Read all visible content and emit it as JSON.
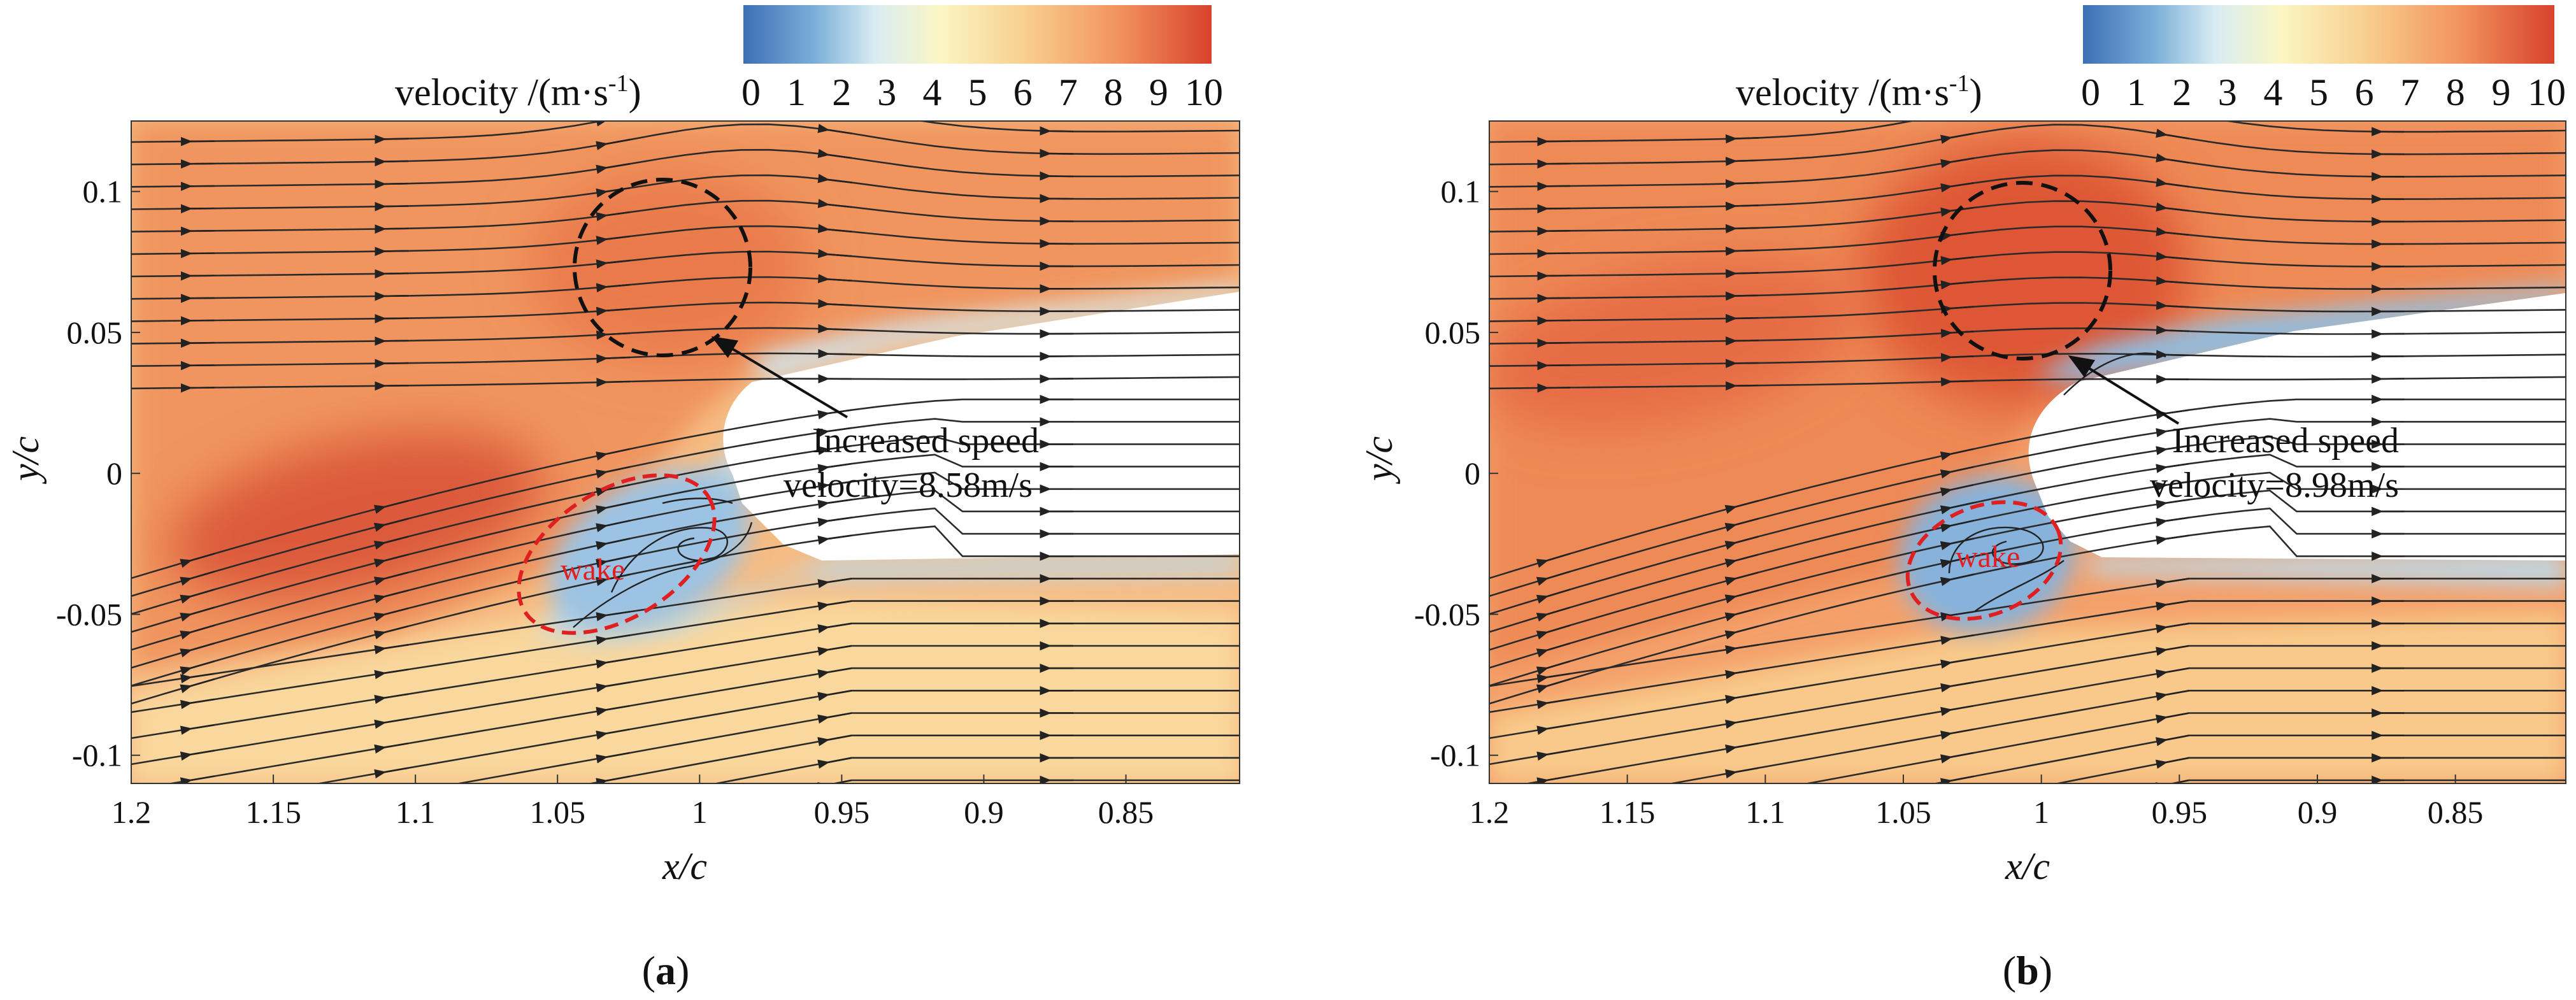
{
  "chart_data": [
    {
      "type": "heatmap",
      "panel_label": "a",
      "xlabel": "x/c",
      "ylabel": "y/c",
      "xlim": [
        1.2,
        0.81
      ],
      "ylim": [
        -0.11,
        0.125
      ],
      "x_ticks": [
        "1.2",
        "1.15",
        "1.1",
        "1.05",
        "1",
        "0.95",
        "0.9",
        "0.85"
      ],
      "x_tick_values": [
        1.2,
        1.15,
        1.1,
        1.05,
        1.0,
        0.95,
        0.9,
        0.85
      ],
      "y_ticks": [
        "0.1",
        "0.05",
        "0",
        "-0.05",
        "-0.1"
      ],
      "y_tick_values": [
        0.1,
        0.05,
        0,
        -0.05,
        -0.1
      ],
      "colorbar": {
        "label": "velocity /(m·s",
        "label_sup": "-1",
        "label_close": ")",
        "min": 0,
        "max": 10,
        "ticks": [
          "0",
          "1",
          "2",
          "3",
          "4",
          "5",
          "6",
          "7",
          "8",
          "9",
          "10"
        ],
        "colors": [
          "#3d6fb6",
          "#7aaed8",
          "#d8ecf3",
          "#fbf6c4",
          "#f8cf8f",
          "#f2935f",
          "#d8422c"
        ]
      },
      "annotation": {
        "line1": "Increased speed",
        "line2": "velocity=8.58m/s",
        "velocity": 8.58
      },
      "wake_label": "wake",
      "high_speed_circle": {
        "x": 1.012,
        "y": 0.073
      },
      "wake_ellipse": {
        "x": 1.03,
        "y": -0.03
      }
    },
    {
      "type": "heatmap",
      "panel_label": "b",
      "xlabel": "x/c",
      "ylabel": "y/c",
      "xlim": [
        1.2,
        0.81
      ],
      "ylim": [
        -0.11,
        0.125
      ],
      "x_ticks": [
        "1.2",
        "1.15",
        "1.1",
        "1.05",
        "1",
        "0.95",
        "0.9",
        "0.85"
      ],
      "x_tick_values": [
        1.2,
        1.15,
        1.1,
        1.05,
        1.0,
        0.95,
        0.9,
        0.85
      ],
      "y_ticks": [
        "0.1",
        "0.05",
        "0",
        "-0.05",
        "-0.1"
      ],
      "y_tick_values": [
        0.1,
        0.05,
        0,
        -0.05,
        -0.1
      ],
      "colorbar": {
        "label": "velocity /(m·s",
        "label_sup": "-1",
        "label_close": ")",
        "min": 0,
        "max": 10,
        "ticks": [
          "0",
          "1",
          "2",
          "3",
          "4",
          "5",
          "6",
          "7",
          "8",
          "9",
          "10"
        ],
        "colors": [
          "#3d6fb6",
          "#7aaed8",
          "#d8ecf3",
          "#fbf6c4",
          "#f8cf8f",
          "#f2935f",
          "#d8422c"
        ]
      },
      "annotation": {
        "line1": "Increased speed",
        "line2": "velocity=8.98m/s",
        "velocity": 8.98
      },
      "wake_label": "wake",
      "high_speed_circle": {
        "x": 1.008,
        "y": 0.072
      },
      "wake_ellipse": {
        "x": 1.02,
        "y": -0.03
      }
    }
  ],
  "captions": {
    "a": "(a)",
    "b": "(b)"
  }
}
